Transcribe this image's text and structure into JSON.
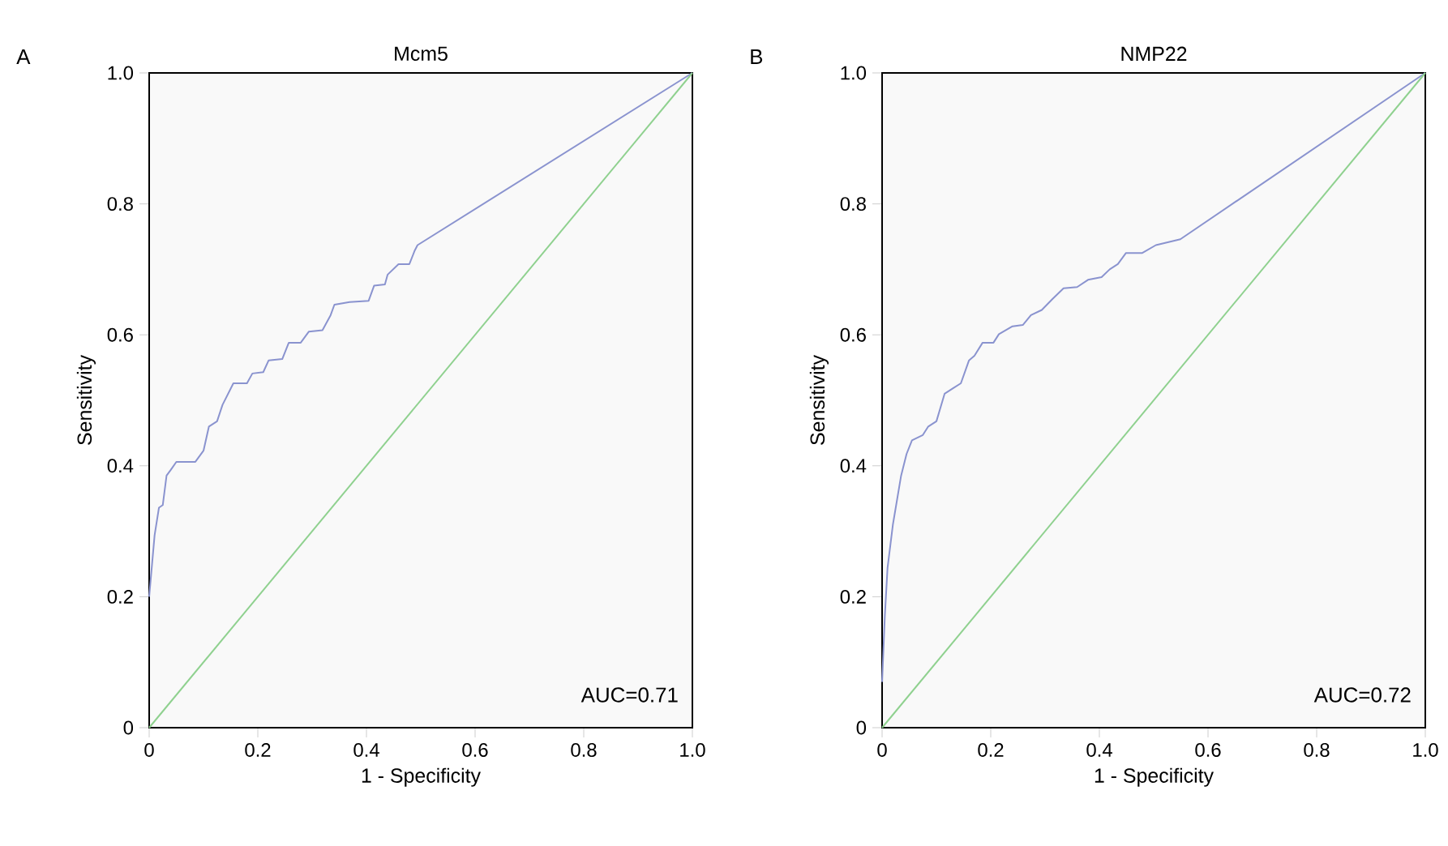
{
  "chart_data": [
    {
      "type": "line",
      "title": "Mcm5",
      "xlabel": "1 - Specificity",
      "ylabel": "Sensitivity",
      "annotations": [
        "A",
        "AUC=0.71"
      ],
      "xlim": [
        0,
        1
      ],
      "ylim": [
        0,
        1
      ],
      "xticks": [
        0,
        0.2,
        0.4,
        0.6,
        0.8,
        {
          "value": 1,
          "label": "1.0"
        }
      ],
      "yticks": [
        0,
        0.2,
        0.4,
        0.6,
        0.8,
        {
          "value": 1,
          "label": "1.0"
        }
      ],
      "grid": false,
      "series": [
        {
          "color": "#8a93cf",
          "x": [
            0,
            0.01,
            0.018,
            0.025,
            0.032,
            0.04,
            0.05,
            0.085,
            0.1,
            0.11,
            0.125,
            0.135,
            0.155,
            0.18,
            0.19,
            0.21,
            0.22,
            0.245,
            0.257,
            0.279,
            0.294,
            0.319,
            0.334,
            0.341,
            0.369,
            0.404,
            0.414,
            0.434,
            0.439,
            0.459,
            0.479,
            0.489,
            0.494,
            1
          ],
          "values": [
            0.2,
            0.294,
            0.336,
            0.34,
            0.385,
            0.394,
            0.406,
            0.406,
            0.423,
            0.46,
            0.468,
            0.493,
            0.526,
            0.526,
            0.541,
            0.543,
            0.561,
            0.563,
            0.588,
            0.588,
            0.605,
            0.607,
            0.63,
            0.646,
            0.65,
            0.652,
            0.675,
            0.677,
            0.692,
            0.708,
            0.708,
            0.729,
            0.737,
            1
          ]
        },
        {
          "color": "#8fd18f",
          "x": [
            0,
            1
          ],
          "values": [
            0,
            1
          ]
        }
      ]
    },
    {
      "type": "line",
      "title": "NMP22",
      "xlabel": "1 - Specificity",
      "ylabel": "Sensitivity",
      "annotations": [
        "B",
        "AUC=0.72"
      ],
      "xlim": [
        0,
        1
      ],
      "ylim": [
        0,
        1
      ],
      "xticks": [
        0,
        0.2,
        0.4,
        0.6,
        0.8,
        {
          "value": 1,
          "label": "1.0"
        }
      ],
      "yticks": [
        0,
        0.2,
        0.4,
        0.6,
        0.8,
        {
          "value": 1,
          "label": "1.0"
        }
      ],
      "grid": false,
      "series": [
        {
          "color": "#8a93cf",
          "x": [
            0,
            0.005,
            0.01,
            0.02,
            0.035,
            0.045,
            0.055,
            0.075,
            0.085,
            0.1,
            0.115,
            0.13,
            0.145,
            0.16,
            0.17,
            0.185,
            0.205,
            0.215,
            0.24,
            0.259,
            0.274,
            0.294,
            0.314,
            0.334,
            0.359,
            0.379,
            0.404,
            0.419,
            0.434,
            0.449,
            0.479,
            0.504,
            0.549,
            1
          ],
          "values": [
            0.07,
            0.17,
            0.244,
            0.311,
            0.385,
            0.418,
            0.439,
            0.447,
            0.46,
            0.468,
            0.51,
            0.518,
            0.526,
            0.561,
            0.568,
            0.588,
            0.588,
            0.601,
            0.613,
            0.615,
            0.63,
            0.638,
            0.655,
            0.671,
            0.673,
            0.684,
            0.688,
            0.7,
            0.708,
            0.725,
            0.725,
            0.737,
            0.746,
            1
          ]
        },
        {
          "color": "#8fd18f",
          "x": [
            0,
            1
          ],
          "values": [
            0,
            1
          ]
        }
      ]
    }
  ]
}
